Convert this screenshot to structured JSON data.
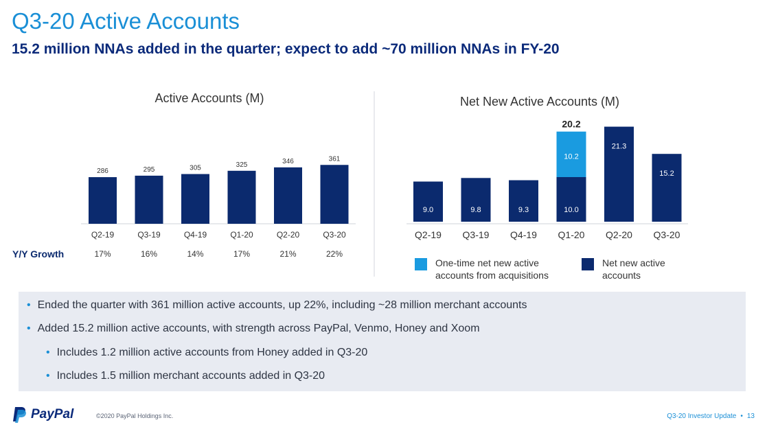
{
  "header": {
    "title": "Q3-20 Active Accounts",
    "subtitle": "15.2 million NNAs added in the quarter; expect to add ~70 million NNAs in FY-20"
  },
  "colors": {
    "dark_navy": "#0b2a6e",
    "light_blue": "#1a9be0",
    "accent": "#1a8fd6"
  },
  "chart_data": [
    {
      "type": "bar",
      "title": "Active Accounts (M)",
      "categories": [
        "Q2-19",
        "Q3-19",
        "Q4-19",
        "Q1-20",
        "Q2-20",
        "Q3-20"
      ],
      "values": [
        286,
        295,
        305,
        325,
        346,
        361
      ],
      "value_labels": [
        "286",
        "295",
        "305",
        "325",
        "346",
        "361"
      ],
      "row_label": "Y/Y Growth",
      "yoy_growth": [
        "17%",
        "16%",
        "14%",
        "17%",
        "21%",
        "22%"
      ]
    },
    {
      "type": "bar",
      "stacked": true,
      "title": "Net New Active Accounts (M)",
      "categories": [
        "Q2-19",
        "Q3-19",
        "Q4-19",
        "Q1-20",
        "Q2-20",
        "Q3-20"
      ],
      "series": [
        {
          "name": "Net new  active accounts",
          "values": [
            9.0,
            9.8,
            9.3,
            10.0,
            21.3,
            15.2
          ],
          "labels": [
            "9.0",
            "9.8",
            "9.3",
            "10.0",
            "21.3",
            "15.2"
          ],
          "color": "#0b2a6e"
        },
        {
          "name": "One-time net new active accounts from acquisitions",
          "values": [
            0,
            0,
            0,
            10.2,
            0,
            0
          ],
          "labels": [
            "",
            "",
            "",
            "10.2",
            "",
            ""
          ],
          "color": "#1a9be0"
        }
      ],
      "totals": [
        "",
        "",
        "",
        "20.2",
        "",
        ""
      ],
      "legend": [
        {
          "name": "One-time net new active accounts from acquisitions",
          "lines": [
            "One-time net new active",
            "accounts from acquisitions"
          ],
          "color": "#1a9be0"
        },
        {
          "name": "Net new  active accounts",
          "lines": [
            "Net new  active",
            "accounts"
          ],
          "color": "#0b2a6e"
        }
      ],
      "legend_position": "bottom"
    }
  ],
  "bullets": [
    {
      "text": "Ended the quarter with 361 million active accounts, up 22%, including ~28 million merchant accounts",
      "level": 1
    },
    {
      "text": "Added 15.2 million active accounts, with strength across PayPal, Venmo, Honey and Xoom",
      "level": 1
    },
    {
      "text": "Includes 1.2 million active accounts from Honey added in Q3-20",
      "level": 2
    },
    {
      "text": "Includes 1.5 million merchant accounts added in Q3-20",
      "level": 2
    }
  ],
  "footer": {
    "logo_text": "PayPal",
    "copyright": "©2020 PayPal Holdings Inc.",
    "doc_name": "Q3-20 Investor Update",
    "separator": "•",
    "page_number": "13"
  }
}
